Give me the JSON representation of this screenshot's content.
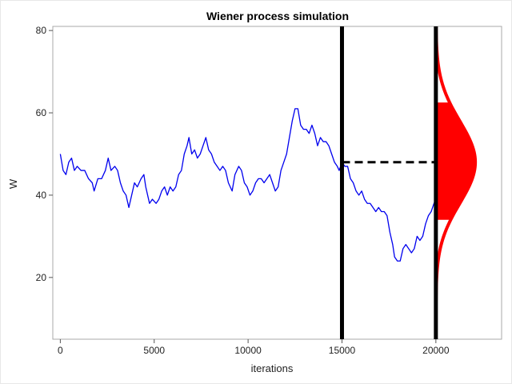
{
  "chart_data": {
    "type": "line",
    "title": "Wiener process simulation",
    "xlabel": "iterations",
    "ylabel": "W",
    "xlim": [
      -400,
      23500
    ],
    "ylim": [
      5,
      81
    ],
    "x_ticks": [
      0,
      5000,
      10000,
      15000,
      20000
    ],
    "x_tick_labels": [
      "0",
      "5000",
      "10000",
      "15000",
      "20000"
    ],
    "y_ticks": [
      20,
      40,
      60,
      80
    ],
    "y_tick_labels": [
      "20",
      "40",
      "60",
      "80"
    ],
    "grid": false,
    "series": [
      {
        "color": "#0000ee",
        "points": [
          [
            0,
            50
          ],
          [
            150,
            46
          ],
          [
            300,
            45
          ],
          [
            450,
            48
          ],
          [
            600,
            49
          ],
          [
            750,
            46
          ],
          [
            900,
            47
          ],
          [
            1100,
            46
          ],
          [
            1300,
            46
          ],
          [
            1500,
            44
          ],
          [
            1700,
            43
          ],
          [
            1800,
            41
          ],
          [
            2000,
            44
          ],
          [
            2200,
            44
          ],
          [
            2400,
            46
          ],
          [
            2550,
            49
          ],
          [
            2700,
            46
          ],
          [
            2900,
            47
          ],
          [
            3050,
            46
          ],
          [
            3200,
            43
          ],
          [
            3350,
            41
          ],
          [
            3500,
            40
          ],
          [
            3650,
            37
          ],
          [
            3800,
            40
          ],
          [
            3950,
            43
          ],
          [
            4100,
            42
          ],
          [
            4300,
            44
          ],
          [
            4450,
            45
          ],
          [
            4550,
            42
          ],
          [
            4650,
            40
          ],
          [
            4750,
            38
          ],
          [
            4900,
            39
          ],
          [
            5100,
            38
          ],
          [
            5250,
            39
          ],
          [
            5400,
            41
          ],
          [
            5550,
            42
          ],
          [
            5700,
            40
          ],
          [
            5850,
            42
          ],
          [
            6000,
            41
          ],
          [
            6150,
            42
          ],
          [
            6300,
            45
          ],
          [
            6450,
            46
          ],
          [
            6600,
            50
          ],
          [
            6750,
            52
          ],
          [
            6850,
            54
          ],
          [
            7000,
            50
          ],
          [
            7150,
            51
          ],
          [
            7300,
            49
          ],
          [
            7450,
            50
          ],
          [
            7600,
            52
          ],
          [
            7750,
            54
          ],
          [
            7900,
            51
          ],
          [
            8050,
            50
          ],
          [
            8200,
            48
          ],
          [
            8350,
            47
          ],
          [
            8500,
            46
          ],
          [
            8650,
            47
          ],
          [
            8800,
            46
          ],
          [
            8950,
            43
          ],
          [
            9050,
            42
          ],
          [
            9150,
            41
          ],
          [
            9300,
            45
          ],
          [
            9500,
            47
          ],
          [
            9650,
            46
          ],
          [
            9800,
            43
          ],
          [
            9950,
            42
          ],
          [
            10100,
            40
          ],
          [
            10250,
            41
          ],
          [
            10400,
            43
          ],
          [
            10550,
            44
          ],
          [
            10700,
            44
          ],
          [
            10850,
            43
          ],
          [
            11000,
            44
          ],
          [
            11150,
            45
          ],
          [
            11300,
            43
          ],
          [
            11450,
            41
          ],
          [
            11600,
            42
          ],
          [
            11750,
            46
          ],
          [
            11900,
            48
          ],
          [
            12050,
            50
          ],
          [
            12200,
            54
          ],
          [
            12350,
            58
          ],
          [
            12500,
            61
          ],
          [
            12650,
            61
          ],
          [
            12800,
            57
          ],
          [
            12950,
            56
          ],
          [
            13100,
            56
          ],
          [
            13250,
            55
          ],
          [
            13400,
            57
          ],
          [
            13550,
            55
          ],
          [
            13700,
            52
          ],
          [
            13850,
            54
          ],
          [
            14000,
            53
          ],
          [
            14150,
            53
          ],
          [
            14300,
            52
          ],
          [
            14450,
            50
          ],
          [
            14600,
            48
          ],
          [
            14750,
            47
          ],
          [
            14850,
            46
          ],
          [
            15000,
            48
          ],
          [
            15150,
            47
          ],
          [
            15300,
            47
          ],
          [
            15450,
            44
          ],
          [
            15600,
            43
          ],
          [
            15750,
            41
          ],
          [
            15900,
            40
          ],
          [
            16050,
            41
          ],
          [
            16200,
            39
          ],
          [
            16350,
            38
          ],
          [
            16500,
            38
          ],
          [
            16650,
            37
          ],
          [
            16800,
            36
          ],
          [
            16950,
            37
          ],
          [
            17100,
            36
          ],
          [
            17250,
            36
          ],
          [
            17400,
            35
          ],
          [
            17550,
            31
          ],
          [
            17700,
            28
          ],
          [
            17800,
            25
          ],
          [
            17950,
            24
          ],
          [
            18100,
            24
          ],
          [
            18250,
            27
          ],
          [
            18400,
            28
          ],
          [
            18550,
            27
          ],
          [
            18700,
            26
          ],
          [
            18850,
            27
          ],
          [
            19000,
            30
          ],
          [
            19150,
            29
          ],
          [
            19300,
            30
          ],
          [
            19450,
            33
          ],
          [
            19600,
            35
          ],
          [
            19750,
            36
          ],
          [
            19900,
            38
          ],
          [
            20000,
            39
          ]
        ]
      }
    ],
    "reference_lines": [
      {
        "x": 15000,
        "color": "#000000"
      },
      {
        "x": 20000,
        "color": "#000000"
      }
    ],
    "dashed_line": {
      "x_start": 15000,
      "x_end": 20000,
      "y": 48,
      "color": "#000000"
    },
    "density": {
      "color": "#ff0000",
      "x_base": 20000,
      "mean": 48,
      "sd": 10,
      "peak_width_x": 2100,
      "filled_range": [
        34,
        62.5
      ]
    }
  }
}
